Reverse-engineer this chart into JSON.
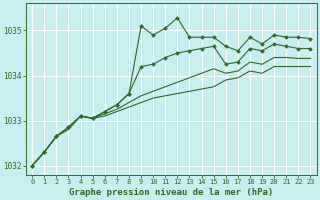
{
  "title": "Graphe pression niveau de la mer (hPa)",
  "bg_color": "#c8eef0",
  "plot_bg_color": "#c8eef0",
  "grid_color": "#ffffff",
  "line_color": "#2d6a2d",
  "marker_color": "#2d6a2d",
  "xlim": [
    -0.5,
    23.5
  ],
  "ylim": [
    1031.8,
    1035.6
  ],
  "yticks": [
    1032,
    1033,
    1034,
    1035
  ],
  "xticks": [
    0,
    1,
    2,
    3,
    4,
    5,
    6,
    7,
    8,
    9,
    10,
    11,
    12,
    13,
    14,
    15,
    16,
    17,
    18,
    19,
    20,
    21,
    22,
    23
  ],
  "series": [
    [
      1032.0,
      1032.3,
      1032.65,
      1032.85,
      1033.1,
      1033.05,
      1033.2,
      1033.35,
      1033.6,
      1035.1,
      1034.9,
      1035.05,
      1035.28,
      1034.85,
      1034.85,
      1034.85,
      1034.65,
      1034.55,
      1034.85,
      1034.7,
      1034.9,
      1034.85,
      1034.85,
      1034.82
    ],
    [
      1032.0,
      1032.3,
      1032.65,
      1032.85,
      1033.1,
      1033.05,
      1033.2,
      1033.35,
      1033.6,
      1034.2,
      1034.25,
      1034.4,
      1034.5,
      1034.55,
      1034.6,
      1034.65,
      1034.25,
      1034.3,
      1034.6,
      1034.55,
      1034.7,
      1034.65,
      1034.6,
      1034.6
    ],
    [
      1032.0,
      1032.3,
      1032.65,
      1032.85,
      1033.1,
      1033.05,
      1033.15,
      1033.25,
      1033.4,
      1033.55,
      1033.65,
      1033.75,
      1033.85,
      1033.95,
      1034.05,
      1034.15,
      1034.05,
      1034.1,
      1034.3,
      1034.25,
      1034.4,
      1034.4,
      1034.38,
      1034.38
    ],
    [
      1032.0,
      1032.3,
      1032.65,
      1032.8,
      1033.1,
      1033.05,
      1033.1,
      1033.2,
      1033.3,
      1033.4,
      1033.5,
      1033.55,
      1033.6,
      1033.65,
      1033.7,
      1033.75,
      1033.9,
      1033.95,
      1034.1,
      1034.05,
      1034.2,
      1034.2,
      1034.2,
      1034.2
    ]
  ],
  "show_markers": [
    true,
    true,
    false,
    false
  ],
  "title_fontsize": 6.5,
  "tick_fontsize": 5.0,
  "ytick_fontsize": 5.5
}
